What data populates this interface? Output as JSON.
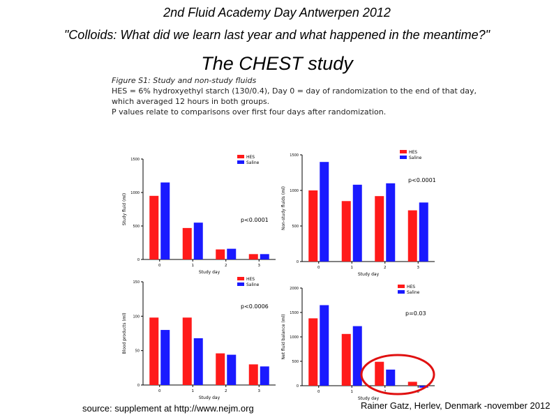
{
  "header": {
    "line1": "2nd Fluid Academy Day Antwerpen 2012",
    "line2": "\"Colloids: What did we learn last year and what happened in the meantime?\"",
    "line3": "The CHEST study"
  },
  "figure_caption": {
    "title": "Figure S1: Study and non-study fluids",
    "lines": [
      "HES = 6% hydroxyethyl starch (130/0.4), Day 0 = day of randomization to the end of that day,",
      "which averaged 12 hours in both groups.",
      "P values relate to comparisons over first four days after randomization."
    ]
  },
  "colors": {
    "hes": "#ff1a1a",
    "saline": "#1a1aff",
    "highlight": "#e01010"
  },
  "chart_data": [
    {
      "type": "bar",
      "categories": [
        "0",
        "1",
        "2",
        "3"
      ],
      "series": [
        {
          "name": "HES",
          "values": [
            950,
            470,
            150,
            80
          ]
        },
        {
          "name": "Saline",
          "values": [
            1150,
            550,
            160,
            80
          ]
        }
      ],
      "ylabel": "Study fluid (ml)",
      "xlabel": "Study day",
      "ylim": [
        0,
        1500
      ],
      "yticks": [
        "0",
        "500",
        "1000",
        "1500"
      ],
      "legend": [
        "HES",
        "Saline"
      ],
      "annotation": "p<0.0001"
    },
    {
      "type": "bar",
      "categories": [
        "0",
        "1",
        "2",
        "3"
      ],
      "series": [
        {
          "name": "HES",
          "values": [
            1000,
            850,
            920,
            720
          ]
        },
        {
          "name": "Saline",
          "values": [
            1400,
            1080,
            1100,
            830
          ]
        }
      ],
      "ylabel": "Non-study fluids (ml)",
      "xlabel": "Study day",
      "ylim": [
        0,
        1500
      ],
      "yticks": [
        "0",
        "500",
        "1000",
        "1500"
      ],
      "legend": [
        "HES",
        "Saline"
      ],
      "annotation": "p<0.0001"
    },
    {
      "type": "bar",
      "categories": [
        "0",
        "1",
        "2",
        "3"
      ],
      "series": [
        {
          "name": "HES",
          "values": [
            98,
            98,
            46,
            30
          ]
        },
        {
          "name": "Saline",
          "values": [
            80,
            68,
            44,
            27
          ]
        }
      ],
      "ylabel": "Blood products (ml)",
      "xlabel": "Study day",
      "ylim": [
        0,
        150
      ],
      "yticks": [
        "0",
        "50",
        "100",
        "150"
      ],
      "legend": [
        "HES",
        "Saline"
      ],
      "annotation": "p<0.0006"
    },
    {
      "type": "bar",
      "categories": [
        "0",
        "1",
        "2",
        "3"
      ],
      "series": [
        {
          "name": "HES",
          "values": [
            1380,
            1060,
            490,
            80
          ]
        },
        {
          "name": "Saline",
          "values": [
            1650,
            1220,
            330,
            -40
          ]
        }
      ],
      "ylabel": "Net fluid balance (ml)",
      "xlabel": "Study day",
      "ylim": [
        0,
        2000
      ],
      "yticks": [
        "0",
        "500",
        "1000",
        "1500",
        "2000"
      ],
      "legend": [
        "HES",
        "Saline"
      ],
      "annotation": "p=0.03"
    }
  ],
  "footer": {
    "source": "source: supplement at http://www.nejm.org",
    "credit": "Rainer Gatz, Herlev, Denmark -november 2012"
  }
}
